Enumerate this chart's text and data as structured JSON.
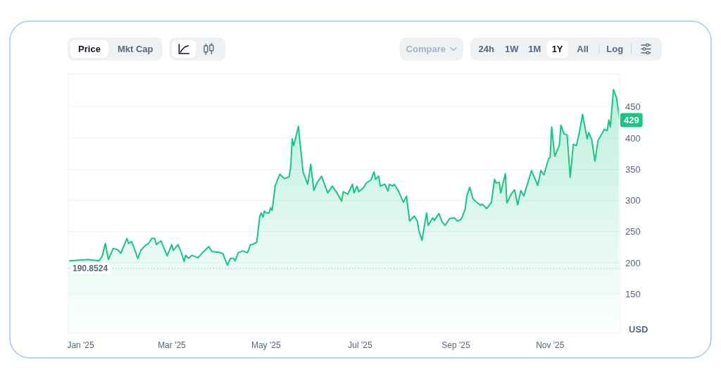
{
  "chart_data": {
    "type": "area",
    "ylabel": "USD",
    "x": [
      "2024-12-24",
      "2025-01-06",
      "2025-01-13",
      "2025-01-15",
      "2025-01-17",
      "2025-01-19",
      "2025-01-22",
      "2025-01-25",
      "2025-01-27",
      "2025-01-31",
      "2025-02-01",
      "2025-02-03",
      "2025-02-04",
      "2025-02-07",
      "2025-02-09",
      "2025-02-12",
      "2025-02-14",
      "2025-02-16",
      "2025-02-18",
      "2025-02-19",
      "2025-02-22",
      "2025-02-26",
      "2025-03-01",
      "2025-03-02",
      "2025-03-05",
      "2025-03-07",
      "2025-03-09",
      "2025-03-10",
      "2025-03-12",
      "2025-03-14",
      "2025-03-18",
      "2025-03-22",
      "2025-03-25",
      "2025-03-27",
      "2025-03-31",
      "2025-04-03",
      "2025-04-05",
      "2025-04-06",
      "2025-04-08",
      "2025-04-10",
      "2025-04-11",
      "2025-04-13",
      "2025-04-16",
      "2025-04-19",
      "2025-04-21",
      "2025-04-22",
      "2025-04-25",
      "2025-04-27",
      "2025-04-28",
      "2025-04-29",
      "2025-04-30",
      "2025-05-01",
      "2025-05-03",
      "2025-05-04",
      "2025-05-05",
      "2025-05-07",
      "2025-05-10",
      "2025-05-13",
      "2025-05-16",
      "2025-05-17",
      "2025-05-18",
      "2025-05-19",
      "2025-05-22",
      "2025-05-25",
      "2025-05-28",
      "2025-05-30",
      "2025-06-01",
      "2025-06-03",
      "2025-06-06",
      "2025-06-10",
      "2025-06-13",
      "2025-06-16",
      "2025-06-19",
      "2025-06-20",
      "2025-06-23",
      "2025-06-26",
      "2025-06-27",
      "2025-06-29",
      "2025-06-30",
      "2025-07-03",
      "2025-07-05",
      "2025-07-08",
      "2025-07-10",
      "2025-07-11",
      "2025-07-13",
      "2025-07-14",
      "2025-07-17",
      "2025-07-19",
      "2025-07-20",
      "2025-07-22",
      "2025-07-23",
      "2025-07-26",
      "2025-07-29",
      "2025-07-31",
      "2025-08-02",
      "2025-08-05",
      "2025-08-07",
      "2025-08-08",
      "2025-08-10",
      "2025-08-13",
      "2025-08-14",
      "2025-08-17",
      "2025-08-18",
      "2025-08-21",
      "2025-08-23",
      "2025-08-25",
      "2025-08-28",
      "2025-08-31",
      "2025-09-02",
      "2025-09-04",
      "2025-09-05",
      "2025-09-07",
      "2025-09-08",
      "2025-09-10",
      "2025-09-12",
      "2025-09-14",
      "2025-09-17",
      "2025-09-18",
      "2025-09-21",
      "2025-09-24",
      "2025-09-26",
      "2025-09-27",
      "2025-09-29",
      "2025-09-30",
      "2025-10-03",
      "2025-10-04",
      "2025-10-07",
      "2025-10-09",
      "2025-10-11",
      "2025-10-13",
      "2025-10-15",
      "2025-10-17",
      "2025-10-20",
      "2025-10-22",
      "2025-10-24",
      "2025-10-26",
      "2025-10-28",
      "2025-10-31",
      "2025-11-01",
      "2025-11-02",
      "2025-11-04",
      "2025-11-07",
      "2025-11-08",
      "2025-11-10",
      "2025-11-12",
      "2025-11-14",
      "2025-11-16",
      "2025-11-18",
      "2025-11-20",
      "2025-11-22",
      "2025-11-25",
      "2025-11-26",
      "2025-11-28",
      "2025-11-30",
      "2025-12-02",
      "2025-12-05",
      "2025-12-06",
      "2025-12-08",
      "2025-12-09",
      "2025-12-10",
      "2025-12-12",
      "2025-12-14",
      "2025-12-16"
    ],
    "series": [
      {
        "color": "#16c784",
        "values": [
          203,
          205,
          203,
          211,
          231,
          205,
          223,
          221,
          215,
          239,
          231,
          234,
          228,
          207,
          220,
          228,
          231,
          239,
          239,
          229,
          235,
          211,
          229,
          220,
          229,
          218,
          202,
          212,
          207,
          212,
          208,
          219,
          226,
          218,
          217,
          215,
          203,
          196,
          207,
          207,
          203,
          216,
          219,
          216,
          229,
          229,
          233,
          275,
          280,
          273,
          283,
          280,
          280,
          288,
          284,
          324,
          342,
          335,
          338,
          354,
          399,
          388,
          419,
          346,
          326,
          358,
          316,
          328,
          339,
          312,
          323,
          312,
          299,
          314,
          310,
          326,
          312,
          323,
          314,
          320,
          328,
          333,
          346,
          334,
          339,
          323,
          326,
          315,
          326,
          323,
          326,
          314,
          297,
          307,
          267,
          275,
          267,
          252,
          236,
          280,
          260,
          272,
          268,
          279,
          266,
          260,
          271,
          272,
          267,
          269,
          273,
          286,
          307,
          321,
          303,
          298,
          292,
          294,
          287,
          297,
          334,
          328,
          329,
          312,
          343,
          296,
          311,
          317,
          293,
          316,
          307,
          324,
          348,
          336,
          324,
          348,
          341,
          367,
          369,
          418,
          371,
          389,
          421,
          407,
          405,
          337,
          390,
          388,
          410,
          438,
          399,
          409,
          397,
          363,
          396,
          409,
          414,
          412,
          429,
          418,
          478,
          465,
          429
        ]
      }
    ],
    "xlim": [
      "2024-12-24",
      "2025-12-16"
    ],
    "xticks": [
      {
        "value": "2025-01-01",
        "label": "Jan '25"
      },
      {
        "value": "2025-03-01",
        "label": "Mar '25"
      },
      {
        "value": "2025-05-01",
        "label": "May '25"
      },
      {
        "value": "2025-07-01",
        "label": "Jul '25"
      },
      {
        "value": "2025-09-01",
        "label": "Sep '25"
      },
      {
        "value": "2025-11-01",
        "label": "Nov '25"
      }
    ],
    "ylim": [
      88,
      503
    ],
    "yticks": [
      150,
      200,
      250,
      300,
      350,
      400,
      450
    ],
    "grid": "y",
    "ref_lines": [
      {
        "axis": "y",
        "value": 190.8524,
        "label": "190.8524",
        "color": "#b4bac6",
        "line_style": "dotted"
      }
    ],
    "annotations": [
      "Price",
      "Mkt Cap",
      "Compare",
      "24h",
      "1W",
      "1M",
      "1Y",
      "All",
      "Log",
      {
        "text": "429",
        "x": "2025-12-16",
        "y": 429
      }
    ]
  }
}
